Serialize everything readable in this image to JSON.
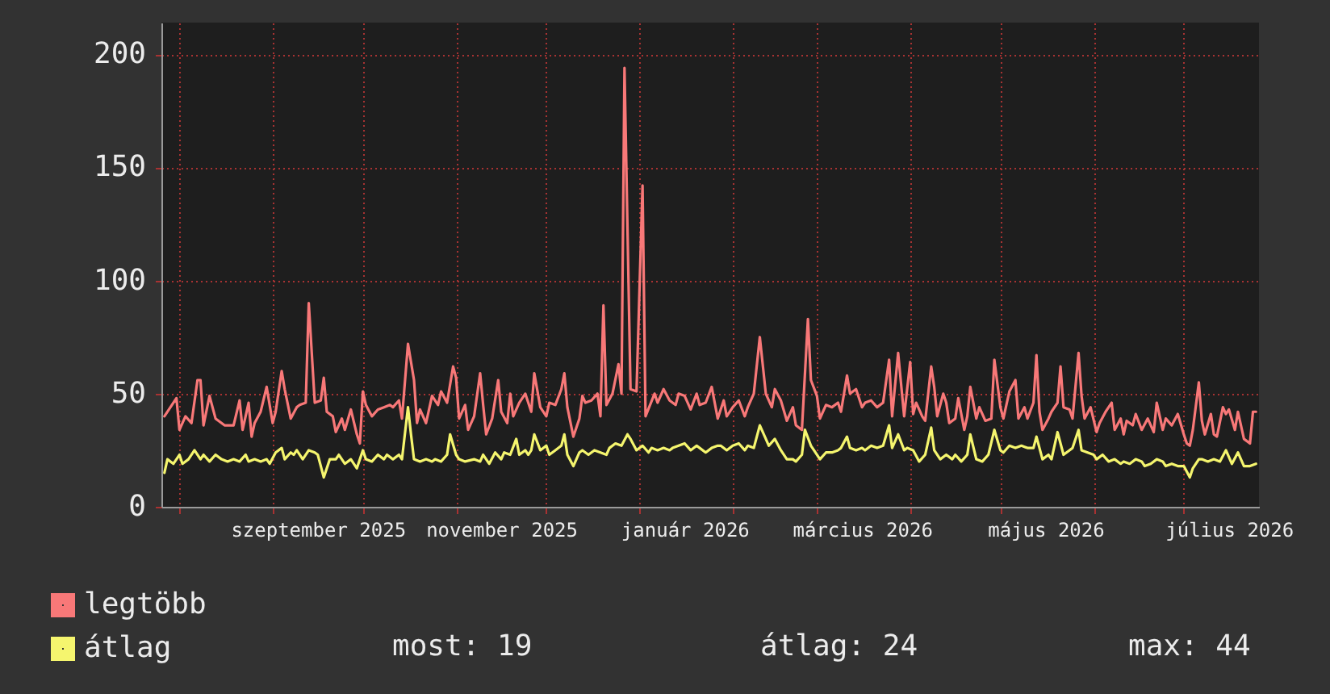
{
  "chart_data": {
    "type": "line",
    "xlim": [
      "2025-07-26",
      "2026-07-26"
    ],
    "xticks": [
      {
        "value": "2025-08-01",
        "label": null
      },
      {
        "value": "2025-09-01",
        "label": null
      },
      {
        "value": "2025-09-16",
        "label": "szeptember 2025"
      },
      {
        "value": "2025-10-01",
        "label": null
      },
      {
        "value": "2025-11-01",
        "label": null
      },
      {
        "value": "2025-11-16",
        "label": "november 2025"
      },
      {
        "value": "2025-12-01",
        "label": null
      },
      {
        "value": "2026-01-01",
        "label": null
      },
      {
        "value": "2026-01-16",
        "label": "január 2026"
      },
      {
        "value": "2026-02-01",
        "label": null
      },
      {
        "value": "2026-03-01",
        "label": null
      },
      {
        "value": "2026-03-16",
        "label": "március 2026"
      },
      {
        "value": "2026-04-01",
        "label": null
      },
      {
        "value": "2026-05-01",
        "label": null
      },
      {
        "value": "2026-05-16",
        "label": "május 2026"
      },
      {
        "value": "2026-06-01",
        "label": null
      },
      {
        "value": "2026-07-01",
        "label": null
      },
      {
        "value": "2026-07-16",
        "label": "július 2026"
      }
    ],
    "ylim": [
      0,
      214
    ],
    "yticks": [
      0,
      50,
      100,
      150,
      200
    ],
    "grid": true,
    "legend": "bottom left",
    "series": [
      {
        "name": "legtöbb",
        "color": "#f87878",
        "x": [
          "2025-07-27",
          "2025-07-31",
          "2025-08-01",
          "2025-08-03",
          "2025-08-05",
          "2025-08-07",
          "2025-08-08",
          "2025-08-09",
          "2025-08-11",
          "2025-08-13",
          "2025-08-15",
          "2025-08-16",
          "2025-08-19",
          "2025-08-21",
          "2025-08-22",
          "2025-08-24",
          "2025-08-25",
          "2025-08-26",
          "2025-08-28",
          "2025-08-30",
          "2025-09-01",
          "2025-09-02",
          "2025-09-04",
          "2025-09-05",
          "2025-09-07",
          "2025-09-09",
          "2025-09-10",
          "2025-09-12",
          "2025-09-13",
          "2025-09-15",
          "2025-09-17",
          "2025-09-18",
          "2025-09-19",
          "2025-09-21",
          "2025-09-22",
          "2025-09-24",
          "2025-09-25",
          "2025-09-27",
          "2025-09-29",
          "2025-09-30",
          "2025-10-01",
          "2025-10-02",
          "2025-10-04",
          "2025-10-06",
          "2025-10-08",
          "2025-10-10",
          "2025-10-11",
          "2025-10-13",
          "2025-10-14",
          "2025-10-16",
          "2025-10-18",
          "2025-10-19",
          "2025-10-20",
          "2025-10-22",
          "2025-10-24",
          "2025-10-26",
          "2025-10-27",
          "2025-10-29",
          "2025-10-31",
          "2025-11-01",
          "2025-11-02",
          "2025-11-04",
          "2025-11-05",
          "2025-11-07",
          "2025-11-09",
          "2025-11-10",
          "2025-11-11",
          "2025-11-13",
          "2025-11-15",
          "2025-11-16",
          "2025-11-18",
          "2025-11-19",
          "2025-11-20",
          "2025-11-22",
          "2025-11-24",
          "2025-11-26",
          "2025-11-27",
          "2025-11-29",
          "2025-12-01",
          "2025-12-02",
          "2025-12-04",
          "2025-12-06",
          "2025-12-07",
          "2025-12-08",
          "2025-12-10",
          "2025-12-12",
          "2025-12-13",
          "2025-12-14",
          "2025-12-16",
          "2025-12-18",
          "2025-12-19",
          "2025-12-20",
          "2025-12-21",
          "2025-12-23",
          "2025-12-25",
          "2025-12-26",
          "2025-12-27",
          "2025-12-29",
          "2025-12-31",
          "2026-01-02",
          "2026-01-03",
          "2026-01-06",
          "2026-01-07",
          "2026-01-09",
          "2026-01-11",
          "2026-01-13",
          "2026-01-14",
          "2026-01-16",
          "2026-01-18",
          "2026-01-20",
          "2026-01-21",
          "2026-01-23",
          "2026-01-25",
          "2026-01-27",
          "2026-01-29",
          "2026-01-30",
          "2026-02-01",
          "2026-02-03",
          "2026-02-05",
          "2026-02-06",
          "2026-02-08",
          "2026-02-10",
          "2026-02-12",
          "2026-02-14",
          "2026-02-15",
          "2026-02-17",
          "2026-02-19",
          "2026-02-21",
          "2026-02-22",
          "2026-02-24",
          "2026-02-26",
          "2026-02-27",
          "2026-03-01",
          "2026-03-02",
          "2026-03-04",
          "2026-03-06",
          "2026-03-08",
          "2026-03-09",
          "2026-03-11",
          "2026-03-12",
          "2026-03-14",
          "2026-03-16",
          "2026-03-17",
          "2026-03-19",
          "2026-03-21",
          "2026-03-23",
          "2026-03-25",
          "2026-03-26",
          "2026-03-28",
          "2026-03-30",
          "2026-04-01",
          "2026-04-02",
          "2026-04-03",
          "2026-04-05",
          "2026-04-06",
          "2026-04-08",
          "2026-04-09",
          "2026-04-10",
          "2026-04-12",
          "2026-04-13",
          "2026-04-14",
          "2026-04-16",
          "2026-04-17",
          "2026-04-19",
          "2026-04-20",
          "2026-04-21",
          "2026-04-23",
          "2026-04-24",
          "2026-04-26",
          "2026-04-28",
          "2026-04-29",
          "2026-05-01",
          "2026-05-02",
          "2026-05-04",
          "2026-05-06",
          "2026-05-07",
          "2026-05-09",
          "2026-05-10",
          "2026-05-12",
          "2026-05-13",
          "2026-05-14",
          "2026-05-15",
          "2026-05-17",
          "2026-05-18",
          "2026-05-20",
          "2026-05-21",
          "2026-05-22",
          "2026-05-24",
          "2026-05-25",
          "2026-05-27",
          "2026-05-28",
          "2026-05-29",
          "2026-05-31",
          "2026-06-02",
          "2026-06-03",
          "2026-06-05",
          "2026-06-07",
          "2026-06-08",
          "2026-06-10",
          "2026-06-11",
          "2026-06-12",
          "2026-06-14",
          "2026-06-15",
          "2026-06-17",
          "2026-06-19",
          "2026-06-21",
          "2026-06-22",
          "2026-06-24",
          "2026-06-25",
          "2026-06-27",
          "2026-06-29",
          "2026-07-01",
          "2026-07-02",
          "2026-07-03",
          "2026-07-04",
          "2026-07-06",
          "2026-07-07",
          "2026-07-08",
          "2026-07-10",
          "2026-07-11",
          "2026-07-12",
          "2026-07-14",
          "2026-07-15",
          "2026-07-16",
          "2026-07-18",
          "2026-07-19",
          "2026-07-21",
          "2026-07-23",
          "2026-07-24",
          "2026-07-25"
        ],
        "values": [
          40,
          48,
          34,
          40,
          37,
          56,
          56,
          36,
          49,
          39,
          37,
          36,
          36,
          47,
          34,
          46,
          31,
          37,
          42,
          53,
          37,
          42,
          60,
          52,
          39,
          44,
          45,
          46,
          90,
          46,
          47,
          57,
          42,
          40,
          33,
          39,
          34,
          43,
          32,
          28,
          51,
          45,
          40,
          43,
          44,
          45,
          44,
          47,
          39,
          72,
          56,
          37,
          43,
          37,
          49,
          45,
          51,
          46,
          62,
          57,
          39,
          45,
          34,
          40,
          59,
          45,
          32,
          39,
          56,
          42,
          37,
          50,
          40,
          46,
          50,
          42,
          59,
          44,
          40,
          46,
          45,
          52,
          59,
          44,
          31,
          39,
          49,
          46,
          47,
          50,
          40,
          89,
          45,
          50,
          63,
          50,
          194,
          52,
          51,
          142,
          40,
          50,
          46,
          52,
          47,
          45,
          50,
          49,
          43,
          50,
          45,
          46,
          53,
          39,
          47,
          40,
          44,
          47,
          40,
          44,
          50,
          75,
          50,
          44,
          52,
          47,
          38,
          44,
          36,
          34,
          83,
          56,
          49,
          39,
          45,
          44,
          46,
          42,
          58,
          50,
          52,
          44,
          46,
          47,
          44,
          46,
          65,
          40,
          68,
          40,
          64,
          41,
          46,
          40,
          38,
          62,
          53,
          40,
          50,
          46,
          37,
          39,
          48,
          34,
          40,
          53,
          39,
          44,
          38,
          39,
          65,
          44,
          39,
          51,
          56,
          39,
          44,
          39,
          46,
          67,
          42,
          34,
          39,
          42,
          46,
          62,
          44,
          43,
          39,
          68,
          49,
          39,
          44,
          33,
          37,
          42,
          46,
          34,
          39,
          32,
          38,
          36,
          41,
          34,
          39,
          33,
          46,
          34,
          39,
          36,
          41,
          32,
          28,
          27,
          34,
          55,
          38,
          32,
          41,
          32,
          31,
          44,
          41,
          43,
          34,
          42,
          30,
          28,
          42,
          42
        ]
      },
      {
        "name": "átlag",
        "color": "#f5f56e",
        "x": [
          "2025-07-27",
          "2025-07-28",
          "2025-07-30",
          "2025-08-01",
          "2025-08-02",
          "2025-08-04",
          "2025-08-06",
          "2025-08-08",
          "2025-08-09",
          "2025-08-11",
          "2025-08-13",
          "2025-08-15",
          "2025-08-17",
          "2025-08-19",
          "2025-08-21",
          "2025-08-23",
          "2025-08-24",
          "2025-08-26",
          "2025-08-28",
          "2025-08-30",
          "2025-08-31",
          "2025-09-02",
          "2025-09-04",
          "2025-09-05",
          "2025-09-07",
          "2025-09-08",
          "2025-09-09",
          "2025-09-11",
          "2025-09-13",
          "2025-09-15",
          "2025-09-16",
          "2025-09-18",
          "2025-09-20",
          "2025-09-22",
          "2025-09-23",
          "2025-09-25",
          "2025-09-27",
          "2025-09-29",
          "2025-10-01",
          "2025-10-02",
          "2025-10-04",
          "2025-10-06",
          "2025-10-08",
          "2025-10-09",
          "2025-10-11",
          "2025-10-13",
          "2025-10-14",
          "2025-10-16",
          "2025-10-17",
          "2025-10-18",
          "2025-10-20",
          "2025-10-22",
          "2025-10-24",
          "2025-10-25",
          "2025-10-27",
          "2025-10-29",
          "2025-10-30",
          "2025-11-01",
          "2025-11-02",
          "2025-11-04",
          "2025-11-07",
          "2025-11-09",
          "2025-11-10",
          "2025-11-12",
          "2025-11-14",
          "2025-11-16",
          "2025-11-17",
          "2025-11-19",
          "2025-11-21",
          "2025-11-22",
          "2025-11-24",
          "2025-11-25",
          "2025-11-26",
          "2025-11-27",
          "2025-11-29",
          "2025-12-01",
          "2025-12-02",
          "2025-12-04",
          "2025-12-06",
          "2025-12-07",
          "2025-12-08",
          "2025-12-10",
          "2025-12-12",
          "2025-12-13",
          "2025-12-15",
          "2025-12-17",
          "2025-12-19",
          "2025-12-21",
          "2025-12-22",
          "2025-12-24",
          "2025-12-26",
          "2025-12-28",
          "2025-12-29",
          "2025-12-31",
          "2026-01-02",
          "2026-01-04",
          "2026-01-05",
          "2026-01-07",
          "2026-01-09",
          "2026-01-11",
          "2026-01-12",
          "2026-01-14",
          "2026-01-16",
          "2026-01-18",
          "2026-01-20",
          "2026-01-21",
          "2026-01-23",
          "2026-01-25",
          "2026-01-27",
          "2026-01-28",
          "2026-01-30",
          "2026-02-01",
          "2026-02-03",
          "2026-02-05",
          "2026-02-06",
          "2026-02-08",
          "2026-02-10",
          "2026-02-12",
          "2026-02-13",
          "2026-02-15",
          "2026-02-17",
          "2026-02-19",
          "2026-02-21",
          "2026-02-22",
          "2026-02-24",
          "2026-02-25",
          "2026-02-27",
          "2026-02-28",
          "2026-03-02",
          "2026-03-04",
          "2026-03-06",
          "2026-03-08",
          "2026-03-09",
          "2026-03-11",
          "2026-03-12",
          "2026-03-14",
          "2026-03-16",
          "2026-03-17",
          "2026-03-19",
          "2026-03-21",
          "2026-03-23",
          "2026-03-25",
          "2026-03-26",
          "2026-03-28",
          "2026-03-30",
          "2026-03-31",
          "2026-04-02",
          "2026-04-04",
          "2026-04-06",
          "2026-04-08",
          "2026-04-09",
          "2026-04-11",
          "2026-04-13",
          "2026-04-15",
          "2026-04-16",
          "2026-04-18",
          "2026-04-20",
          "2026-04-21",
          "2026-04-23",
          "2026-04-25",
          "2026-04-27",
          "2026-04-29",
          "2026-05-01",
          "2026-05-02",
          "2026-05-04",
          "2026-05-06",
          "2026-05-08",
          "2026-05-10",
          "2026-05-12",
          "2026-05-13",
          "2026-05-15",
          "2026-05-17",
          "2026-05-18",
          "2026-05-20",
          "2026-05-22",
          "2026-05-24",
          "2026-05-25",
          "2026-05-27",
          "2026-05-28",
          "2026-05-30",
          "2026-06-01",
          "2026-06-02",
          "2026-06-04",
          "2026-06-06",
          "2026-06-08",
          "2026-06-10",
          "2026-06-11",
          "2026-06-13",
          "2026-06-15",
          "2026-06-17",
          "2026-06-18",
          "2026-06-20",
          "2026-06-22",
          "2026-06-24",
          "2026-06-25",
          "2026-06-27",
          "2026-06-29",
          "2026-07-01",
          "2026-07-03",
          "2026-07-04",
          "2026-07-06",
          "2026-07-07",
          "2026-07-09",
          "2026-07-11",
          "2026-07-13",
          "2026-07-15",
          "2026-07-17",
          "2026-07-19",
          "2026-07-21",
          "2026-07-23",
          "2026-07-25"
        ],
        "values": [
          15,
          21,
          19,
          23,
          19,
          21,
          25,
          21,
          23,
          20,
          23,
          21,
          20,
          21,
          20,
          23,
          20,
          21,
          20,
          21,
          19,
          24,
          26,
          21,
          24,
          23,
          25,
          21,
          25,
          24,
          23,
          13,
          21,
          21,
          23,
          19,
          21,
          17,
          25,
          21,
          20,
          23,
          21,
          23,
          21,
          23,
          21,
          44,
          32,
          21,
          20,
          21,
          20,
          21,
          20,
          23,
          32,
          23,
          21,
          20,
          21,
          20,
          23,
          19,
          24,
          21,
          24,
          23,
          30,
          23,
          25,
          23,
          25,
          32,
          25,
          27,
          23,
          25,
          27,
          32,
          23,
          18,
          24,
          25,
          23,
          25,
          24,
          23,
          26,
          28,
          27,
          32,
          30,
          25,
          27,
          24,
          26,
          25,
          26,
          25,
          26,
          27,
          28,
          25,
          27,
          26,
          24,
          26,
          27,
          27,
          25,
          27,
          28,
          25,
          27,
          26,
          36,
          30,
          27,
          30,
          25,
          21,
          21,
          20,
          23,
          34,
          27,
          25,
          21,
          24,
          24,
          25,
          26,
          31,
          26,
          25,
          26,
          25,
          27,
          26,
          27,
          36,
          26,
          32,
          25,
          26,
          25,
          20,
          23,
          35,
          25,
          21,
          23,
          21,
          23,
          20,
          23,
          32,
          21,
          20,
          23,
          34,
          25,
          24,
          27,
          26,
          27,
          26,
          26,
          31,
          21,
          23,
          21,
          33,
          23,
          25,
          26,
          34,
          25,
          24,
          23,
          21,
          23,
          20,
          21,
          19,
          20,
          19,
          21,
          20,
          18,
          19,
          21,
          20,
          18,
          19,
          18,
          18,
          13,
          17,
          21,
          21,
          20,
          21,
          20,
          25,
          19,
          24,
          18,
          18,
          19
        ]
      }
    ],
    "annotations": [
      "most: 19",
      "átlag: 24",
      "max: 44"
    ]
  }
}
